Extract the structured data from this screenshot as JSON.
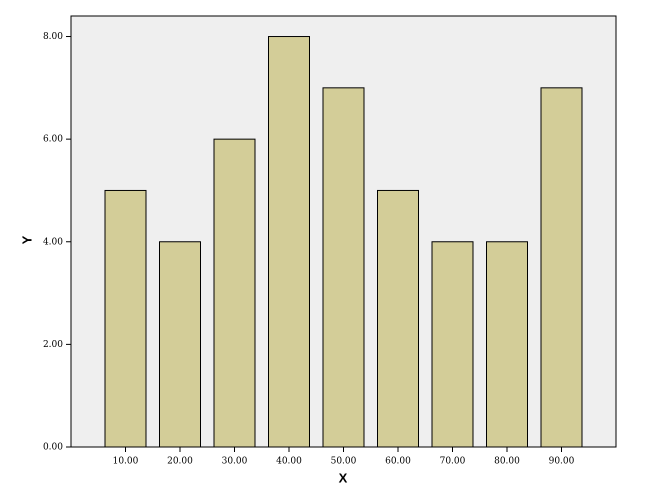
{
  "chart_data": {
    "type": "bar",
    "x_label": "X",
    "y_label": "Y",
    "categories": [
      "10.00",
      "20.00",
      "30.00",
      "40.00",
      "50.00",
      "60.00",
      "70.00",
      "80.00",
      "90.00"
    ],
    "values": [
      5,
      4,
      6,
      8,
      7,
      5,
      4,
      4,
      7
    ],
    "color": "#d3cd98",
    "ylim": [
      0,
      8.4
    ],
    "yticks": [
      {
        "value": 0,
        "label": "0.00"
      },
      {
        "value": 2,
        "label": "2.00"
      },
      {
        "value": 4,
        "label": "4.00"
      },
      {
        "value": 6,
        "label": "6.00"
      },
      {
        "value": 8,
        "label": "8.00"
      }
    ],
    "grid": false
  }
}
